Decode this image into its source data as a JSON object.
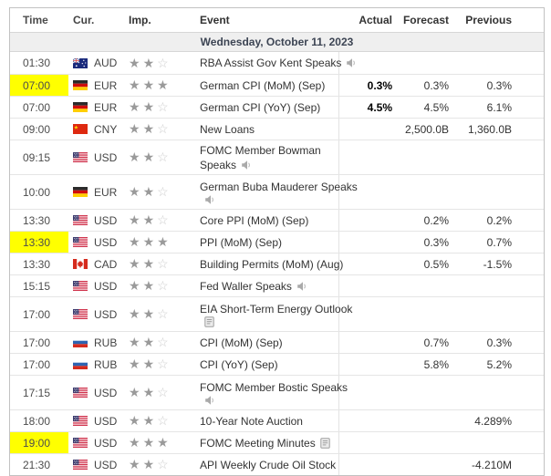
{
  "table": {
    "columns": [
      "Time",
      "Cur.",
      "Imp.",
      "Event",
      "Actual",
      "Forecast",
      "Previous"
    ],
    "date_header": "Wednesday, October 11, 2023",
    "importance_max": 3,
    "rows": [
      {
        "time": "01:30",
        "highlighted": false,
        "currency": "AUD",
        "flag": "australia",
        "importance": 2,
        "event_lines": [
          "RBA Assist Gov Kent Speaks"
        ],
        "icon": "speaker",
        "actual": "",
        "forecast": "",
        "previous": ""
      },
      {
        "time": "07:00",
        "highlighted": true,
        "currency": "EUR",
        "flag": "germany",
        "importance": 3,
        "event_lines": [
          "German CPI (MoM) (Sep)"
        ],
        "icon": null,
        "actual": "0.3%",
        "forecast": "0.3%",
        "previous": "0.3%"
      },
      {
        "time": "07:00",
        "highlighted": false,
        "currency": "EUR",
        "flag": "germany",
        "importance": 2,
        "event_lines": [
          "German CPI (YoY) (Sep)"
        ],
        "icon": null,
        "actual": "4.5%",
        "forecast": "4.5%",
        "previous": "6.1%"
      },
      {
        "time": "09:00",
        "highlighted": false,
        "currency": "CNY",
        "flag": "china",
        "importance": 2,
        "event_lines": [
          "New Loans"
        ],
        "icon": null,
        "actual": "",
        "forecast": "2,500.0B",
        "previous": "1,360.0B"
      },
      {
        "time": "09:15",
        "highlighted": false,
        "currency": "USD",
        "flag": "usa",
        "importance": 2,
        "event_lines": [
          "FOMC Member Bowman",
          "Speaks"
        ],
        "icon": "speaker",
        "actual": "",
        "forecast": "",
        "previous": ""
      },
      {
        "time": "10:00",
        "highlighted": false,
        "currency": "EUR",
        "flag": "germany",
        "importance": 2,
        "event_lines": [
          "German Buba Mauderer Speaks",
          ""
        ],
        "icon": "speaker",
        "actual": "",
        "forecast": "",
        "previous": ""
      },
      {
        "time": "13:30",
        "highlighted": false,
        "currency": "USD",
        "flag": "usa",
        "importance": 2,
        "event_lines": [
          "Core PPI (MoM) (Sep)"
        ],
        "icon": null,
        "actual": "",
        "forecast": "0.2%",
        "previous": "0.2%"
      },
      {
        "time": "13:30",
        "highlighted": true,
        "currency": "USD",
        "flag": "usa",
        "importance": 3,
        "event_lines": [
          "PPI (MoM) (Sep)"
        ],
        "icon": null,
        "actual": "",
        "forecast": "0.3%",
        "previous": "0.7%"
      },
      {
        "time": "13:30",
        "highlighted": false,
        "currency": "CAD",
        "flag": "canada",
        "importance": 2,
        "event_lines": [
          "Building Permits (MoM) (Aug)"
        ],
        "icon": null,
        "actual": "",
        "forecast": "0.5%",
        "previous": "-1.5%"
      },
      {
        "time": "15:15",
        "highlighted": false,
        "currency": "USD",
        "flag": "usa",
        "importance": 2,
        "event_lines": [
          "Fed Waller Speaks"
        ],
        "icon": "speaker",
        "actual": "",
        "forecast": "",
        "previous": ""
      },
      {
        "time": "17:00",
        "highlighted": false,
        "currency": "USD",
        "flag": "usa",
        "importance": 2,
        "event_lines": [
          "EIA Short-Term Energy Outlook",
          ""
        ],
        "icon": "report",
        "actual": "",
        "forecast": "",
        "previous": ""
      },
      {
        "time": "17:00",
        "highlighted": false,
        "currency": "RUB",
        "flag": "russia",
        "importance": 2,
        "event_lines": [
          "CPI (MoM) (Sep)"
        ],
        "icon": null,
        "actual": "",
        "forecast": "0.7%",
        "previous": "0.3%"
      },
      {
        "time": "17:00",
        "highlighted": false,
        "currency": "RUB",
        "flag": "russia",
        "importance": 2,
        "event_lines": [
          "CPI (YoY) (Sep)"
        ],
        "icon": null,
        "actual": "",
        "forecast": "5.8%",
        "previous": "5.2%"
      },
      {
        "time": "17:15",
        "highlighted": false,
        "currency": "USD",
        "flag": "usa",
        "importance": 2,
        "event_lines": [
          "FOMC Member Bostic Speaks",
          ""
        ],
        "icon": "speaker",
        "actual": "",
        "forecast": "",
        "previous": ""
      },
      {
        "time": "18:00",
        "highlighted": false,
        "currency": "USD",
        "flag": "usa",
        "importance": 2,
        "event_lines": [
          "10-Year Note Auction"
        ],
        "icon": null,
        "actual": "",
        "forecast": "",
        "previous": "4.289%"
      },
      {
        "time": "19:00",
        "highlighted": true,
        "currency": "USD",
        "flag": "usa",
        "importance": 3,
        "event_lines": [
          "FOMC Meeting Minutes"
        ],
        "icon": "report",
        "actual": "",
        "forecast": "",
        "previous": ""
      },
      {
        "time": "21:30",
        "highlighted": false,
        "currency": "USD",
        "flag": "usa",
        "importance": 2,
        "event_lines": [
          "API Weekly Crude Oil Stock"
        ],
        "icon": null,
        "actual": "",
        "forecast": "",
        "previous": "-4.210M"
      }
    ]
  },
  "colors": {
    "highlight": "#ffff00",
    "star_filled": "#9a9a9a",
    "star_empty": "#cdcdcd",
    "date_band_bg": "#efefef",
    "actual_text": "#000000"
  }
}
